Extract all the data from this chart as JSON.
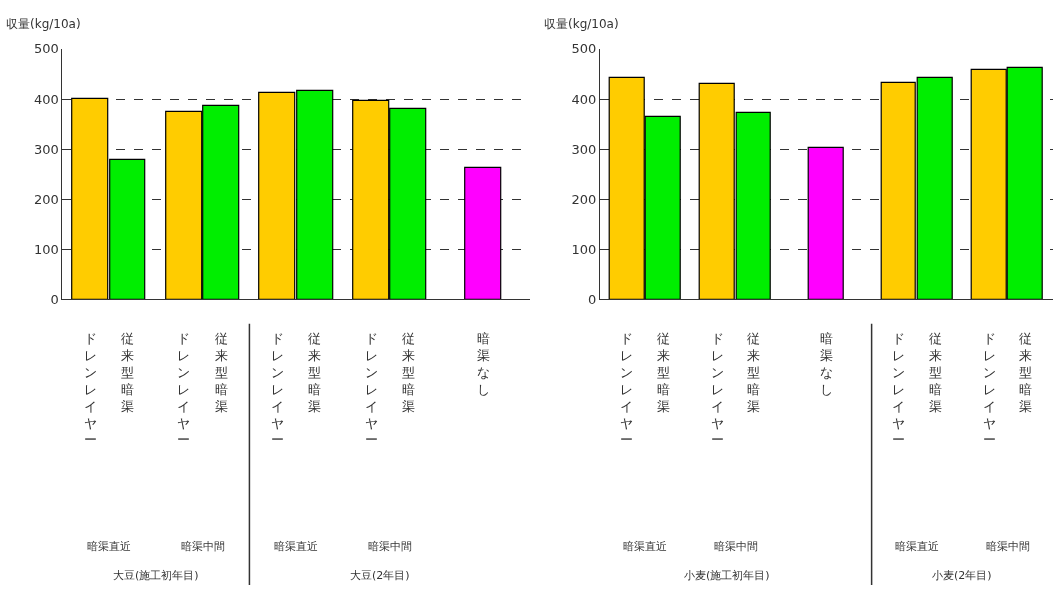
{
  "chart_data": [
    {
      "type": "bar",
      "ylabel": "収量(kg/10a)",
      "categories": [
        "ドレンレイヤー",
        "従来型暗渠",
        "ドレンレイヤー",
        "従来型暗渠",
        "ドレンレイヤー",
        "従来型暗渠",
        "ドレンレイヤー",
        "従来型暗渠",
        "暗渠なし"
      ],
      "values": [
        400,
        278,
        375,
        386,
        412,
        416,
        396,
        381,
        263
      ],
      "colors": [
        "#ffcc00",
        "#00ee00",
        "#ffcc00",
        "#00ee00",
        "#ffcc00",
        "#00ee00",
        "#ffcc00",
        "#00ee00",
        "#ff00ff"
      ],
      "ylim": [
        0,
        500
      ],
      "yticks": [
        0,
        100,
        200,
        300,
        400,
        500
      ],
      "grid": "y",
      "annotations": [
        "暗渠直近",
        "暗渠中間",
        "暗渠直近",
        "暗渠中間",
        "大豆(施工初年目)",
        "大豆(2年目)"
      ]
    },
    {
      "type": "bar",
      "ylabel": "収量(kg/10a)",
      "categories": [
        "ドレンレイヤー",
        "従来型暗渠",
        "ドレンレイヤー",
        "従来型暗渠",
        "暗渠なし",
        "ドレンレイヤー",
        "従来型暗渠",
        "ドレンレイヤー",
        "従来型暗渠"
      ],
      "values": [
        442,
        364,
        430,
        373,
        302,
        433,
        442,
        459,
        462
      ],
      "colors": [
        "#ffcc00",
        "#00ee00",
        "#ffcc00",
        "#00ee00",
        "#ff00ff",
        "#ffcc00",
        "#00ee00",
        "#ffcc00",
        "#00ee00"
      ],
      "ylim": [
        0,
        500
      ],
      "yticks": [
        0,
        100,
        200,
        300,
        400,
        500
      ],
      "grid": "y",
      "annotations": [
        "暗渠直近",
        "暗渠中間",
        "暗渠直近",
        "暗渠中間",
        "小麦(施工初年目)",
        "小麦(2年目)"
      ]
    }
  ]
}
